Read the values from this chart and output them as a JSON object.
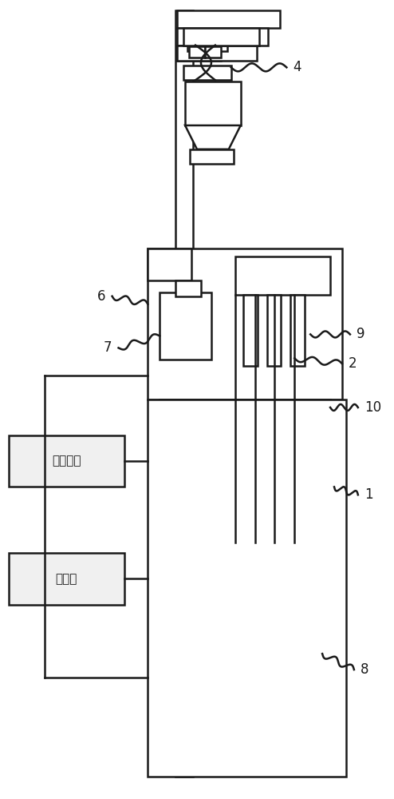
{
  "bg_color": "#ffffff",
  "line_color": "#1a1a1a",
  "line_width": 1.8,
  "fig_w": 4.94,
  "fig_h": 10.0,
  "dpi": 100
}
